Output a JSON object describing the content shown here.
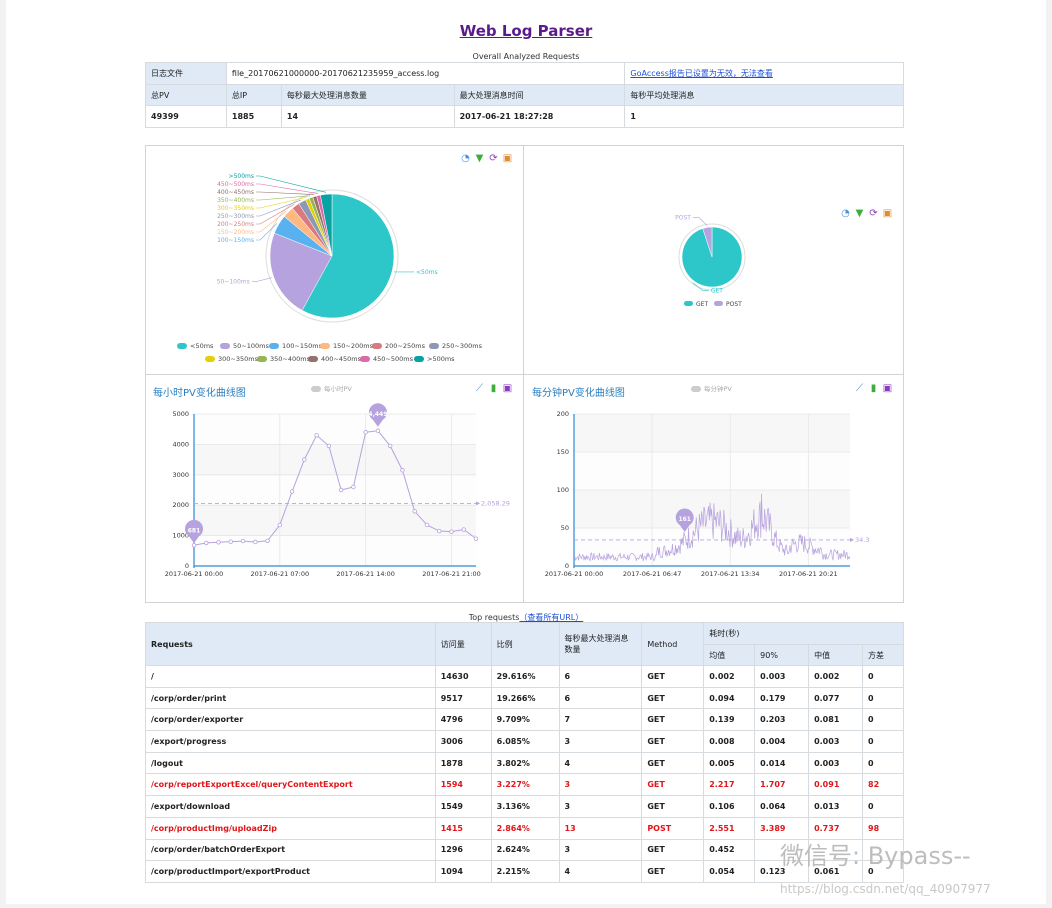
{
  "page": {
    "title": "Web Log Parser",
    "subtitle": "Overall Analyzed Requests"
  },
  "summary": {
    "log_file_label": "日志文件",
    "log_file_value": "file_20170621000000-20170621235959_access.log",
    "goaccess_link": "GoAccess报告已设置为无效，无法查看",
    "headers": [
      "总PV",
      "总IP",
      "每秒最大处理消息数量",
      "最大处理消息时间",
      "每秒平均处理消息"
    ],
    "values": [
      "49399",
      "1885",
      "14",
      "2017-06-21 18:27:28",
      "1"
    ]
  },
  "toolbox_icons": [
    "pie-chart-icon",
    "filter-icon",
    "refresh-icon",
    "save-icon"
  ],
  "line_toolbox_icons": [
    "line-chart-icon",
    "bar-chart-icon",
    "save-icon"
  ],
  "colors": {
    "teal": "#2ec7c9",
    "lavender": "#b6a2de",
    "blue": "#5ab1ef",
    "peach": "#ffb980",
    "rose": "#d87a80",
    "slate": "#8d98b3",
    "yellow": "#e5cf0d",
    "green": "#97b552",
    "brown": "#95706d",
    "pink": "#dc69aa",
    "darkteal": "#07a2a4",
    "line": "#b6a2de",
    "warn": "#e0161a"
  },
  "chart_data": [
    {
      "type": "pie",
      "title": "",
      "labels": [
        "<50ms",
        "50~100ms",
        "100~150ms",
        "150~200ms",
        "200~250ms",
        "250~300ms",
        "300~350ms",
        "350~400ms",
        "400~450ms",
        "450~500ms",
        ">500ms"
      ],
      "values": [
        58.0,
        23.0,
        5.0,
        3.0,
        2.0,
        2.0,
        1.0,
        1.0,
        1.0,
        1.0,
        3.0
      ],
      "legend": "bottom"
    },
    {
      "type": "pie",
      "title": "",
      "labels": [
        "GET",
        "POST"
      ],
      "values": [
        95.0,
        5.0
      ],
      "legend": "bottom"
    },
    {
      "type": "line",
      "title": "每小时PV变化曲线图",
      "legend_label": "每小时PV",
      "x_ticks": [
        "2017-06-21 00:00",
        "2017-06-21 07:00",
        "2017-06-21 14:00",
        "2017-06-21 21:00"
      ],
      "y_ticks": [
        "0",
        "1000",
        "2000",
        "3000",
        "4000",
        "5000"
      ],
      "ylim": [
        0,
        5000
      ],
      "x": [
        0,
        1,
        2,
        3,
        4,
        5,
        6,
        7,
        8,
        9,
        10,
        11,
        12,
        13,
        14,
        15,
        16,
        17,
        18,
        19,
        20,
        21,
        22,
        23
      ],
      "values": [
        681,
        760,
        780,
        800,
        820,
        790,
        830,
        1350,
        2450,
        3500,
        4300,
        3950,
        2500,
        2600,
        4400,
        4449,
        3950,
        3150,
        1800,
        1350,
        1150,
        1130,
        1200,
        900
      ],
      "max_label": "4,449",
      "min_label": "681",
      "avg_label": "2,058.29",
      "avg": 2058.29
    },
    {
      "type": "line",
      "title": "每分钟PV变化曲线图",
      "legend_label": "每分钟PV",
      "x_ticks": [
        "2017-06-21 00:00",
        "2017-06-21 06:47",
        "2017-06-21 13:34",
        "2017-06-21 20:21"
      ],
      "y_ticks": [
        "0",
        "50",
        "100",
        "150",
        "200"
      ],
      "ylim": [
        0,
        200
      ],
      "max_label": "161",
      "avg_label": "34.3",
      "avg": 34.3
    }
  ],
  "top_requests": {
    "caption": "Top requests",
    "view_all_link": "（查看所有URL）",
    "headers": {
      "requests": "Requests",
      "visits": "访问量",
      "ratio": "比例",
      "max_per_sec": "每秒最大处理消息数量",
      "method": "Method",
      "time_group": "耗时(秒)",
      "avg": "均值",
      "p90": "90%",
      "median": "中值",
      "variance": "方差"
    },
    "rows": [
      {
        "url": "/",
        "visits": "14630",
        "ratio": "29.616%",
        "max": "6",
        "method": "GET",
        "avg": "0.002",
        "p90": "0.003",
        "median": "0.002",
        "var": "0",
        "warn": false
      },
      {
        "url": "/corp/order/print",
        "visits": "9517",
        "ratio": "19.266%",
        "max": "6",
        "method": "GET",
        "avg": "0.094",
        "p90": "0.179",
        "median": "0.077",
        "var": "0",
        "warn": false
      },
      {
        "url": "/corp/order/exporter",
        "visits": "4796",
        "ratio": "9.709%",
        "max": "7",
        "method": "GET",
        "avg": "0.139",
        "p90": "0.203",
        "median": "0.081",
        "var": "0",
        "warn": false
      },
      {
        "url": "/export/progress",
        "visits": "3006",
        "ratio": "6.085%",
        "max": "3",
        "method": "GET",
        "avg": "0.008",
        "p90": "0.004",
        "median": "0.003",
        "var": "0",
        "warn": false
      },
      {
        "url": "/logout",
        "visits": "1878",
        "ratio": "3.802%",
        "max": "4",
        "method": "GET",
        "avg": "0.005",
        "p90": "0.014",
        "median": "0.003",
        "var": "0",
        "warn": false
      },
      {
        "url": "/corp/reportExportExcel/queryContentExport",
        "visits": "1594",
        "ratio": "3.227%",
        "max": "3",
        "method": "GET",
        "avg": "2.217",
        "p90": "1.707",
        "median": "0.091",
        "var": "82",
        "warn": true
      },
      {
        "url": "/export/download",
        "visits": "1549",
        "ratio": "3.136%",
        "max": "3",
        "method": "GET",
        "avg": "0.106",
        "p90": "0.064",
        "median": "0.013",
        "var": "0",
        "warn": false
      },
      {
        "url": "/corp/productImg/uploadZip",
        "visits": "1415",
        "ratio": "2.864%",
        "max": "13",
        "method": "POST",
        "avg": "2.551",
        "p90": "3.389",
        "median": "0.737",
        "var": "98",
        "warn": true
      },
      {
        "url": "/corp/order/batchOrderExport",
        "visits": "1296",
        "ratio": "2.624%",
        "max": "3",
        "method": "GET",
        "avg": "0.452",
        "p90": "",
        "median": "",
        "var": "",
        "warn": false
      },
      {
        "url": "/corp/productImport/exportProduct",
        "visits": "1094",
        "ratio": "2.215%",
        "max": "4",
        "method": "GET",
        "avg": "0.054",
        "p90": "0.123",
        "median": "0.061",
        "var": "0",
        "warn": false
      }
    ]
  },
  "watermark": {
    "text": "微信号: Bypass--",
    "url": "https://blog.csdn.net/qq_40907977"
  }
}
